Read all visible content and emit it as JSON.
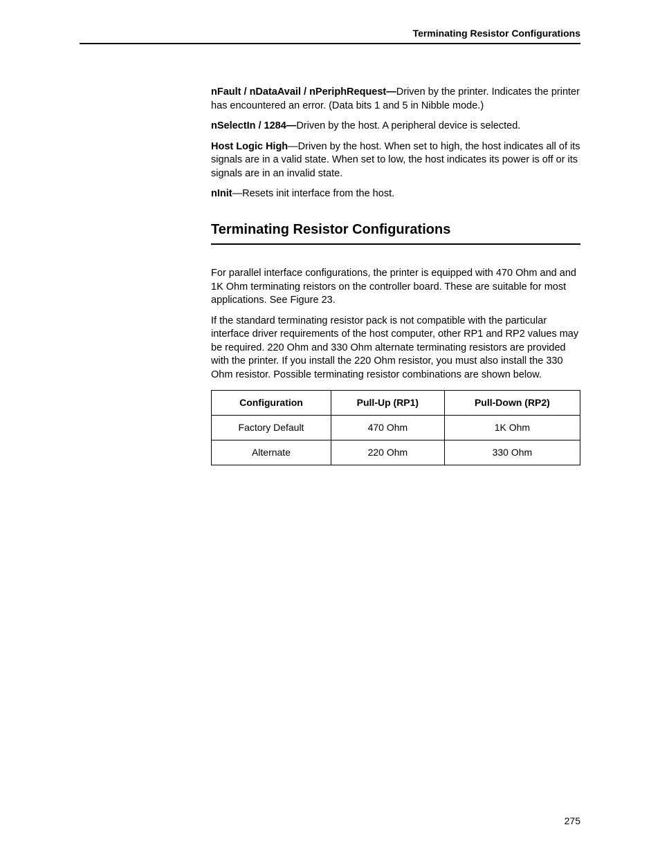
{
  "header": {
    "title": "Terminating Resistor Configurations"
  },
  "signals": [
    {
      "name": "nFault / nDataAvail / nPeriphRequest—",
      "desc": "Driven by the printer. Indicates the printer has encountered an error. (Data bits 1 and 5 in Nibble mode.)"
    },
    {
      "name": "nSelectIn / 1284—",
      "desc": "Driven by the host. A peripheral device is selected."
    },
    {
      "name": "Host Logic High",
      "desc": "—Driven by the host. When set to high, the host indicates all of its signals are in a valid state. When set to low, the host indicates its power is off or its signals are in an invalid state."
    },
    {
      "name": "nInit",
      "desc": "—Resets init interface from the host."
    }
  ],
  "section": {
    "title": "Terminating Resistor Configurations",
    "para1": "For parallel interface configurations, the printer is equipped with 470 Ohm and and 1K Ohm terminating reistors on the controller board. These are suitable for most applications. See Figure 23.",
    "para2": "If the standard terminating resistor pack is not compatible with the particular interface driver requirements of the host computer, other RP1 and RP2 values may be required. 220 Ohm and 330 Ohm alternate terminating resistors are provided with the printer. If you install the 220 Ohm resistor, you must also install the 330 Ohm resistor. Possible terminating resistor combinations are shown below."
  },
  "table": {
    "headers": [
      "Configuration",
      "Pull-Up (RP1)",
      "Pull-Down (RP2)"
    ],
    "rows": [
      [
        "Factory Default",
        "470 Ohm",
        "1K Ohm"
      ],
      [
        "Alternate",
        "220 Ohm",
        "330 Ohm"
      ]
    ]
  },
  "pageNumber": "275"
}
